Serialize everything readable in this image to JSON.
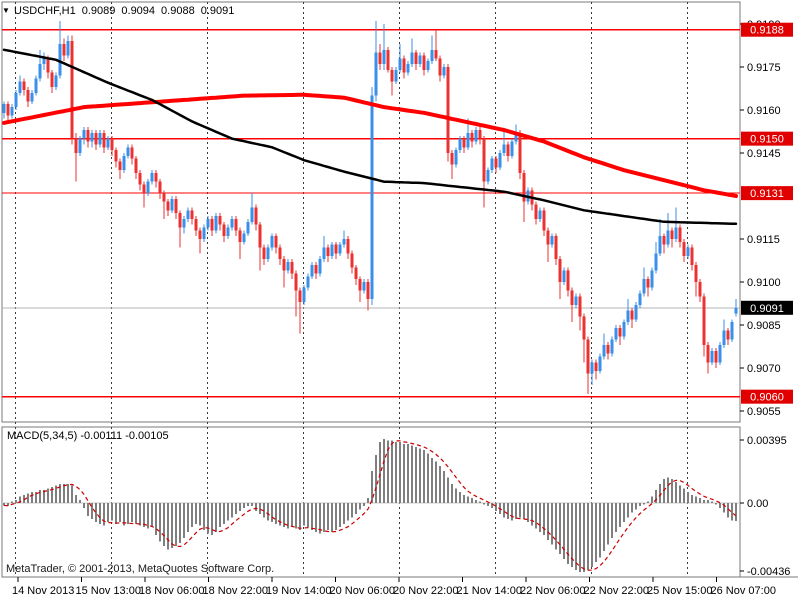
{
  "window": {
    "title_symbol": "USDCHF,H1",
    "open": "0.9089",
    "high": "0.9094",
    "low": "0.9088",
    "close": "0.9091"
  },
  "indicator_header": {
    "label": "MACD(5,34,5)",
    "value": "-0.00111",
    "signal_value": "-0.00105"
  },
  "footer": {
    "copyright": "MetaTrader, © 2001-2013, MetaQuotes Software Corp."
  },
  "price_axis": {
    "ticks": [
      "0.9190",
      "0.9175",
      "0.9160",
      "0.9145",
      "0.9115",
      "0.9100",
      "0.9085",
      "0.9070",
      "0.9055"
    ],
    "level_badges": [
      "0.9188",
      "0.9150",
      "0.9131",
      "0.9060"
    ],
    "current_badge": "0.9091"
  },
  "time_axis": {
    "labels": [
      "14 Nov 2013",
      "15 Nov 13:00",
      "18 Nov 06:00",
      "18 Nov 22:00",
      "19 Nov 14:00",
      "20 Nov 06:00",
      "20 Nov 22:00",
      "21 Nov 14:00",
      "22 Nov 06:00",
      "22 Nov 22:00",
      "25 Nov 15:00",
      "26 Nov 07:00"
    ]
  },
  "macd_axis": {
    "ticks": [
      "0.00395",
      "0.00",
      "-0.00436"
    ]
  },
  "colors": {
    "background": "#ffffff",
    "panel_border": "#7a7a7a",
    "bull_candle": "#3a8fe8",
    "bear_candle": "#ea3232",
    "ma_red": "#ff0000",
    "ma_black": "#000000",
    "level_line": "#ff0000",
    "current_price_line": "#b4b4b4",
    "badge_red": "#e00000",
    "badge_black": "#000000",
    "badge_text": "#ffffff",
    "macd_bar": "#7f7f7f",
    "macd_signal": "#cc0000",
    "day_separator": "#3a3a3a",
    "axis_text": "#000000"
  },
  "chart_data": {
    "type": "candlestick",
    "title": "USDCHF,H1 0.9089 0.9094 0.9088 0.9091",
    "symbol": "USDCHF",
    "timeframe": "H1",
    "price_base": 0.9,
    "pip": 0.0001,
    "ylim": [
      0.9052,
      0.9198
    ],
    "x_labels": [
      "14 Nov 2013",
      "15 Nov 13:00",
      "18 Nov 06:00",
      "18 Nov 22:00",
      "19 Nov 14:00",
      "20 Nov 06:00",
      "20 Nov 22:00",
      "21 Nov 14:00",
      "22 Nov 06:00",
      "22 Nov 22:00",
      "25 Nov 15:00",
      "26 Nov 07:00"
    ],
    "levels": [
      0.9188,
      0.915,
      0.9131,
      0.906
    ],
    "current_price": 0.9091,
    "day_separator_bars": [
      2,
      26,
      50,
      74,
      98,
      122,
      146,
      170
    ],
    "candles_pips": [
      [
        159,
        163,
        157,
        162
      ],
      [
        162,
        163,
        156,
        158
      ],
      [
        158,
        162,
        157,
        161
      ],
      [
        161,
        167,
        160,
        166
      ],
      [
        166,
        172,
        165,
        170
      ],
      [
        170,
        171,
        165,
        167
      ],
      [
        167,
        168,
        161,
        163
      ],
      [
        163,
        167,
        162,
        166
      ],
      [
        166,
        172,
        165,
        171
      ],
      [
        171,
        181,
        170,
        176
      ],
      [
        176,
        180,
        174,
        178
      ],
      [
        178,
        179,
        171,
        173
      ],
      [
        173,
        174,
        166,
        168
      ],
      [
        168,
        173,
        167,
        172
      ],
      [
        172,
        191,
        171,
        183
      ],
      [
        183,
        185,
        177,
        179
      ],
      [
        179,
        186,
        178,
        184
      ],
      [
        184,
        186,
        148,
        150
      ],
      [
        150,
        152,
        135,
        145
      ],
      [
        145,
        151,
        144,
        150
      ],
      [
        150,
        154,
        148,
        153
      ],
      [
        153,
        154,
        147,
        149
      ],
      [
        149,
        153,
        147,
        152
      ],
      [
        152,
        153,
        146,
        148
      ],
      [
        148,
        153,
        147,
        152
      ],
      [
        152,
        153,
        145,
        147
      ],
      [
        147,
        151,
        146,
        150
      ],
      [
        150,
        151,
        144,
        146
      ],
      [
        146,
        147,
        140,
        142
      ],
      [
        142,
        143,
        136,
        139
      ],
      [
        139,
        145,
        138,
        144
      ],
      [
        144,
        148,
        143,
        147
      ],
      [
        147,
        148,
        141,
        143
      ],
      [
        143,
        144,
        136,
        138
      ],
      [
        138,
        139,
        132,
        134
      ],
      [
        134,
        135,
        126,
        131
      ],
      [
        131,
        136,
        130,
        135
      ],
      [
        135,
        139,
        134,
        138
      ],
      [
        138,
        139,
        133,
        135
      ],
      [
        135,
        136,
        129,
        131
      ],
      [
        131,
        132,
        122,
        128
      ],
      [
        128,
        129,
        123,
        125
      ],
      [
        125,
        130,
        124,
        129
      ],
      [
        129,
        130,
        122,
        124
      ],
      [
        124,
        125,
        112,
        119
      ],
      [
        119,
        123,
        117,
        122
      ],
      [
        122,
        126,
        121,
        125
      ],
      [
        125,
        126,
        120,
        122
      ],
      [
        122,
        123,
        116,
        118
      ],
      [
        118,
        119,
        110,
        115
      ],
      [
        115,
        120,
        114,
        119
      ],
      [
        119,
        123,
        118,
        122
      ],
      [
        122,
        123,
        116,
        118
      ],
      [
        118,
        124,
        117,
        123
      ],
      [
        123,
        124,
        118,
        120
      ],
      [
        120,
        121,
        114,
        116
      ],
      [
        116,
        120,
        115,
        119
      ],
      [
        119,
        123,
        118,
        122
      ],
      [
        122,
        123,
        116,
        118
      ],
      [
        118,
        119,
        108,
        114
      ],
      [
        114,
        118,
        113,
        117
      ],
      [
        117,
        122,
        116,
        121
      ],
      [
        121,
        131,
        120,
        126
      ],
      [
        126,
        127,
        118,
        120
      ],
      [
        120,
        121,
        104,
        112
      ],
      [
        112,
        113,
        106,
        108
      ],
      [
        108,
        113,
        107,
        112
      ],
      [
        112,
        117,
        111,
        116
      ],
      [
        116,
        117,
        110,
        112
      ],
      [
        112,
        113,
        106,
        108
      ],
      [
        108,
        109,
        98,
        104
      ],
      [
        104,
        108,
        103,
        107
      ],
      [
        107,
        108,
        101,
        103
      ],
      [
        103,
        104,
        88,
        97
      ],
      [
        97,
        98,
        82,
        93
      ],
      [
        93,
        99,
        92,
        98
      ],
      [
        98,
        103,
        97,
        102
      ],
      [
        102,
        107,
        101,
        106
      ],
      [
        106,
        107,
        101,
        103
      ],
      [
        103,
        109,
        102,
        108
      ],
      [
        108,
        116,
        107,
        112
      ],
      [
        112,
        113,
        107,
        109
      ],
      [
        109,
        114,
        108,
        113
      ],
      [
        113,
        114,
        108,
        110
      ],
      [
        110,
        114,
        109,
        113
      ],
      [
        113,
        118,
        112,
        115
      ],
      [
        115,
        116,
        108,
        110
      ],
      [
        110,
        111,
        103,
        105
      ],
      [
        105,
        106,
        99,
        101
      ],
      [
        101,
        102,
        93,
        97
      ],
      [
        97,
        101,
        96,
        100
      ],
      [
        100,
        101,
        90,
        94
      ],
      [
        94,
        168,
        92,
        165
      ],
      [
        165,
        191,
        163,
        180
      ],
      [
        180,
        183,
        174,
        176
      ],
      [
        176,
        190,
        174,
        181
      ],
      [
        181,
        182,
        173,
        174
      ],
      [
        174,
        175,
        165,
        170
      ],
      [
        170,
        175,
        169,
        174
      ],
      [
        174,
        183,
        173,
        178
      ],
      [
        178,
        179,
        171,
        173
      ],
      [
        173,
        177,
        172,
        176
      ],
      [
        176,
        185,
        175,
        180
      ],
      [
        180,
        181,
        174,
        176
      ],
      [
        176,
        180,
        175,
        179
      ],
      [
        179,
        180,
        172,
        174
      ],
      [
        174,
        178,
        173,
        177
      ],
      [
        177,
        186,
        176,
        181
      ],
      [
        181,
        188,
        177,
        178
      ],
      [
        178,
        179,
        170,
        172
      ],
      [
        172,
        176,
        171,
        175
      ],
      [
        175,
        176,
        142,
        145
      ],
      [
        145,
        146,
        136,
        141
      ],
      [
        141,
        147,
        140,
        146
      ],
      [
        146,
        151,
        145,
        150
      ],
      [
        150,
        151,
        145,
        147
      ],
      [
        147,
        157,
        146,
        152
      ],
      [
        152,
        153,
        147,
        149
      ],
      [
        149,
        154,
        148,
        153
      ],
      [
        153,
        154,
        148,
        150
      ],
      [
        150,
        151,
        126,
        135
      ],
      [
        135,
        140,
        134,
        139
      ],
      [
        139,
        144,
        138,
        143
      ],
      [
        143,
        144,
        138,
        140
      ],
      [
        140,
        146,
        139,
        145
      ],
      [
        145,
        153,
        144,
        148
      ],
      [
        148,
        149,
        142,
        144
      ],
      [
        144,
        150,
        143,
        149
      ],
      [
        149,
        155,
        148,
        152
      ],
      [
        152,
        153,
        136,
        138
      ],
      [
        138,
        139,
        121,
        128
      ],
      [
        128,
        133,
        127,
        132
      ],
      [
        132,
        133,
        125,
        127
      ],
      [
        127,
        128,
        120,
        122
      ],
      [
        122,
        126,
        121,
        125
      ],
      [
        125,
        126,
        116,
        118
      ],
      [
        118,
        119,
        107,
        113
      ],
      [
        113,
        117,
        112,
        116
      ],
      [
        116,
        117,
        106,
        108
      ],
      [
        108,
        109,
        94,
        100
      ],
      [
        100,
        105,
        99,
        104
      ],
      [
        104,
        105,
        95,
        97
      ],
      [
        97,
        98,
        86,
        92
      ],
      [
        92,
        96,
        91,
        95
      ],
      [
        95,
        96,
        83,
        88
      ],
      [
        88,
        89,
        72,
        80
      ],
      [
        80,
        81,
        61,
        68
      ],
      [
        68,
        73,
        64,
        72
      ],
      [
        72,
        73,
        66,
        69
      ],
      [
        69,
        75,
        68,
        74
      ],
      [
        74,
        82,
        73,
        78
      ],
      [
        78,
        79,
        73,
        75
      ],
      [
        75,
        81,
        74,
        80
      ],
      [
        80,
        85,
        79,
        84
      ],
      [
        84,
        85,
        78,
        81
      ],
      [
        81,
        87,
        80,
        86
      ],
      [
        86,
        94,
        85,
        90
      ],
      [
        90,
        91,
        84,
        87
      ],
      [
        87,
        93,
        86,
        92
      ],
      [
        92,
        97,
        91,
        96
      ],
      [
        96,
        105,
        95,
        101
      ],
      [
        101,
        102,
        95,
        98
      ],
      [
        98,
        105,
        97,
        104
      ],
      [
        104,
        114,
        103,
        110
      ],
      [
        110,
        122,
        109,
        116
      ],
      [
        116,
        117,
        110,
        113
      ],
      [
        113,
        124,
        112,
        118
      ],
      [
        118,
        119,
        112,
        115
      ],
      [
        115,
        126,
        114,
        119
      ],
      [
        119,
        120,
        112,
        114
      ],
      [
        114,
        115,
        107,
        109
      ],
      [
        109,
        113,
        108,
        112
      ],
      [
        112,
        113,
        104,
        106
      ],
      [
        106,
        107,
        95,
        100
      ],
      [
        100,
        101,
        93,
        95
      ],
      [
        95,
        96,
        74,
        78
      ],
      [
        78,
        79,
        68,
        72
      ],
      [
        72,
        77,
        71,
        76
      ],
      [
        76,
        77,
        70,
        72
      ],
      [
        72,
        79,
        71,
        78
      ],
      [
        78,
        87,
        77,
        83
      ],
      [
        83,
        84,
        78,
        80
      ],
      [
        80,
        87,
        79,
        86
      ],
      [
        89,
        94,
        88,
        91
      ]
    ],
    "overlays": [
      {
        "name": "red-lwma",
        "color": "#ff0000",
        "width": 4,
        "anchors_pips": [
          [
            0,
            155.5
          ],
          [
            20,
            161
          ],
          [
            40,
            163
          ],
          [
            60,
            165
          ],
          [
            75,
            165.3
          ],
          [
            85,
            164.3
          ],
          [
            95,
            161
          ],
          [
            105,
            159
          ],
          [
            115,
            156
          ],
          [
            125,
            153
          ],
          [
            135,
            149
          ],
          [
            145,
            143.5
          ],
          [
            155,
            139
          ],
          [
            165,
            135.5
          ],
          [
            175,
            132
          ],
          [
            183,
            130
          ]
        ]
      },
      {
        "name": "black-sma",
        "color": "#000000",
        "width": 2.5,
        "anchors_pips": [
          [
            0,
            181
          ],
          [
            13,
            177.5
          ],
          [
            26,
            169.5
          ],
          [
            37,
            163.5
          ],
          [
            47,
            156
          ],
          [
            57,
            150
          ],
          [
            67,
            147
          ],
          [
            75,
            142.5
          ],
          [
            85,
            138.5
          ],
          [
            95,
            135
          ],
          [
            105,
            134.5
          ],
          [
            115,
            133
          ],
          [
            125,
            131.5
          ],
          [
            135,
            128.5
          ],
          [
            145,
            125
          ],
          [
            155,
            123
          ],
          [
            165,
            121
          ],
          [
            175,
            120.6
          ],
          [
            183,
            120.3
          ]
        ]
      }
    ],
    "indicator": {
      "type": "MACD",
      "params": [
        5,
        34,
        5
      ],
      "current_value": -0.00111,
      "current_signal": -0.00105,
      "y_range": [
        -0.00436,
        0.00395
      ],
      "signal_period": 5,
      "values_e4": [
        -1.5,
        -2,
        1,
        2,
        4,
        5,
        6,
        7,
        7,
        8,
        8,
        9,
        10,
        11,
        12,
        12,
        12,
        11,
        5,
        2,
        -3,
        -8,
        -10,
        -12,
        -13,
        -14,
        -12,
        -11,
        -13,
        -12,
        -14,
        -13,
        -12,
        -13,
        -14,
        -15,
        -16,
        -15,
        -20,
        -24,
        -27,
        -29,
        -28,
        -27,
        -25,
        -22,
        -18,
        -15,
        -13,
        -14,
        -17,
        -19,
        -20,
        -18,
        -15,
        -13,
        -11,
        -9,
        -7,
        -5,
        -3,
        -2,
        -2,
        -5,
        -7,
        -9,
        -11,
        -12,
        -13,
        -14,
        -15,
        -16,
        -15,
        -16,
        -17,
        -14,
        -15,
        -17,
        -18,
        -19,
        -18,
        -17,
        -18,
        -17,
        -15,
        -13,
        -11,
        -9,
        -7,
        -4,
        -2,
        3,
        20,
        30,
        38,
        40,
        39,
        39,
        38,
        38,
        37,
        37,
        36,
        35,
        34,
        33,
        31,
        28,
        26,
        23,
        20,
        16,
        12,
        9,
        7,
        5,
        4,
        3,
        2,
        1,
        -1,
        -2,
        -3,
        -5,
        -7,
        -9,
        -10,
        -11,
        -10,
        -9,
        -10,
        -12,
        -14,
        -16,
        -18,
        -20,
        -23,
        -26,
        -29,
        -32,
        -35,
        -38,
        -40,
        -42,
        -43,
        -43,
        -42,
        -40,
        -37,
        -34,
        -30,
        -26,
        -22,
        -18,
        -15,
        -12,
        -9,
        -6,
        -4,
        -2,
        -1,
        1,
        4,
        8,
        12,
        15,
        16,
        15,
        13,
        11,
        9,
        7,
        5,
        4,
        3,
        2,
        2,
        1,
        -1,
        -3,
        -6,
        -9,
        -11,
        -11.1
      ]
    }
  }
}
